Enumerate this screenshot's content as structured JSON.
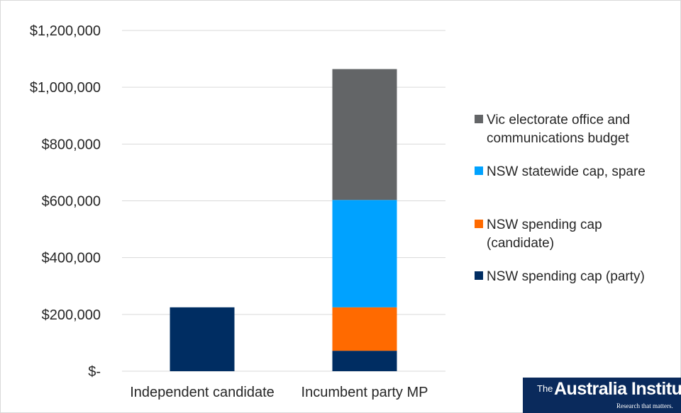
{
  "chart_data": {
    "type": "bar",
    "stacked": true,
    "title": "",
    "xlabel": "",
    "ylabel": "",
    "categories": [
      "Independent candidate",
      "Incumbent party MP"
    ],
    "series": [
      {
        "name": "NSW spending cap (party)",
        "values": [
          225000,
          72000
        ],
        "color": "#002d62"
      },
      {
        "name": "NSW spending cap (candidate)",
        "values": [
          0,
          153000
        ],
        "color": "#ff6a00"
      },
      {
        "name": "NSW statewide cap, spare",
        "values": [
          0,
          378000
        ],
        "color": "#00a2ff"
      },
      {
        "name": "Vic electorate office and communications budget",
        "values": [
          0,
          461000
        ],
        "color": "#636567"
      }
    ],
    "ylim": [
      0,
      1200000
    ],
    "yticks": [
      0,
      200000,
      400000,
      600000,
      800000,
      1000000,
      1200000
    ],
    "ytick_labels": [
      "$-",
      "$200,000",
      "$400,000",
      "$600,000",
      "$800,000",
      "$1,000,000",
      "$1,200,000"
    ],
    "grid": true,
    "legend_position": "right",
    "legend_labels": [
      [
        "Vic electorate office and",
        "communications budget"
      ],
      [
        "NSW statewide cap, spare"
      ],
      [
        "NSW spending cap",
        "(candidate)"
      ],
      [
        "NSW spending cap (party)"
      ]
    ],
    "legend_order": [
      3,
      2,
      1,
      0
    ]
  },
  "logo": {
    "sup": "The",
    "main": "Australia Institute",
    "tagline": "Research that matters."
  }
}
